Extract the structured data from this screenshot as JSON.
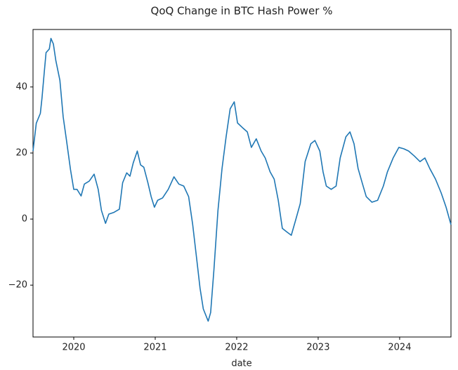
{
  "chart_data": {
    "type": "line",
    "title": "QoQ Change in BTC Hash Power %",
    "xlabel": "date",
    "x": [
      2019.5,
      2019.54,
      2019.59,
      2019.61,
      2019.64,
      2019.66,
      2019.7,
      2019.72,
      2019.75,
      2019.78,
      2019.83,
      2019.87,
      2019.91,
      2019.96,
      2020.0,
      2020.04,
      2020.09,
      2020.13,
      2020.19,
      2020.25,
      2020.3,
      2020.34,
      2020.39,
      2020.43,
      2020.49,
      2020.56,
      2020.6,
      2020.65,
      2020.69,
      2020.73,
      2020.78,
      2020.82,
      2020.86,
      2020.91,
      2020.95,
      2020.99,
      2021.03,
      2021.09,
      2021.16,
      2021.23,
      2021.29,
      2021.35,
      2021.41,
      2021.46,
      2021.51,
      2021.55,
      2021.59,
      2021.65,
      2021.68,
      2021.72,
      2021.77,
      2021.82,
      2021.87,
      2021.92,
      2021.97,
      2022.01,
      2022.07,
      2022.13,
      2022.18,
      2022.24,
      2022.3,
      2022.35,
      2022.41,
      2022.46,
      2022.51,
      2022.56,
      2022.61,
      2022.67,
      2022.72,
      2022.78,
      2022.84,
      2022.91,
      2022.96,
      2023.02,
      2023.06,
      2023.1,
      2023.16,
      2023.22,
      2023.27,
      2023.34,
      2023.39,
      2023.44,
      2023.49,
      2023.54,
      2023.59,
      2023.66,
      2023.73,
      2023.8,
      2023.85,
      2023.92,
      2023.99,
      2024.05,
      2024.11,
      2024.18,
      2024.25,
      2024.31,
      2024.37,
      2024.44,
      2024.51,
      2024.57,
      2024.63
    ],
    "values": [
      20.6,
      29,
      32,
      36.6,
      45,
      50.4,
      51.5,
      54.7,
      53,
      48,
      42,
      31,
      24,
      15,
      9,
      9,
      7,
      10.6,
      11.5,
      13.6,
      9,
      2.6,
      -1.3,
      1.5,
      2,
      3,
      11,
      14,
      13,
      17,
      20.6,
      16.4,
      15.7,
      11,
      6.8,
      3.6,
      5.7,
      6.4,
      9,
      12.8,
      10.6,
      10,
      6.8,
      -1.7,
      -12.3,
      -20.9,
      -27.2,
      -30.9,
      -28.3,
      -15.5,
      2.6,
      15.3,
      24.9,
      33.4,
      35.5,
      29.1,
      27.7,
      26.4,
      21.7,
      24.3,
      20.6,
      18.5,
      14.3,
      12.1,
      5.7,
      -2.8,
      -3.8,
      -4.9,
      -0.6,
      4.7,
      17.4,
      22.8,
      23.8,
      20.6,
      14.3,
      10,
      9,
      10,
      18.5,
      24.9,
      26.4,
      22.8,
      15.3,
      11,
      6.8,
      5.1,
      5.7,
      10,
      14.3,
      18.5,
      21.7,
      21.3,
      20.6,
      19.1,
      17.4,
      18.5,
      15.3,
      12.1,
      7.9,
      3.6,
      -1.7
    ],
    "color": "#1f77b4",
    "xlim": [
      2019.5,
      2024.63
    ],
    "xticks": [
      2020,
      2021,
      2022,
      2023,
      2024
    ],
    "ylim": [
      -35.7,
      57.4
    ],
    "yticks": [
      {
        "value": -20,
        "label": "−20"
      },
      0,
      20,
      40
    ],
    "grid": false
  }
}
